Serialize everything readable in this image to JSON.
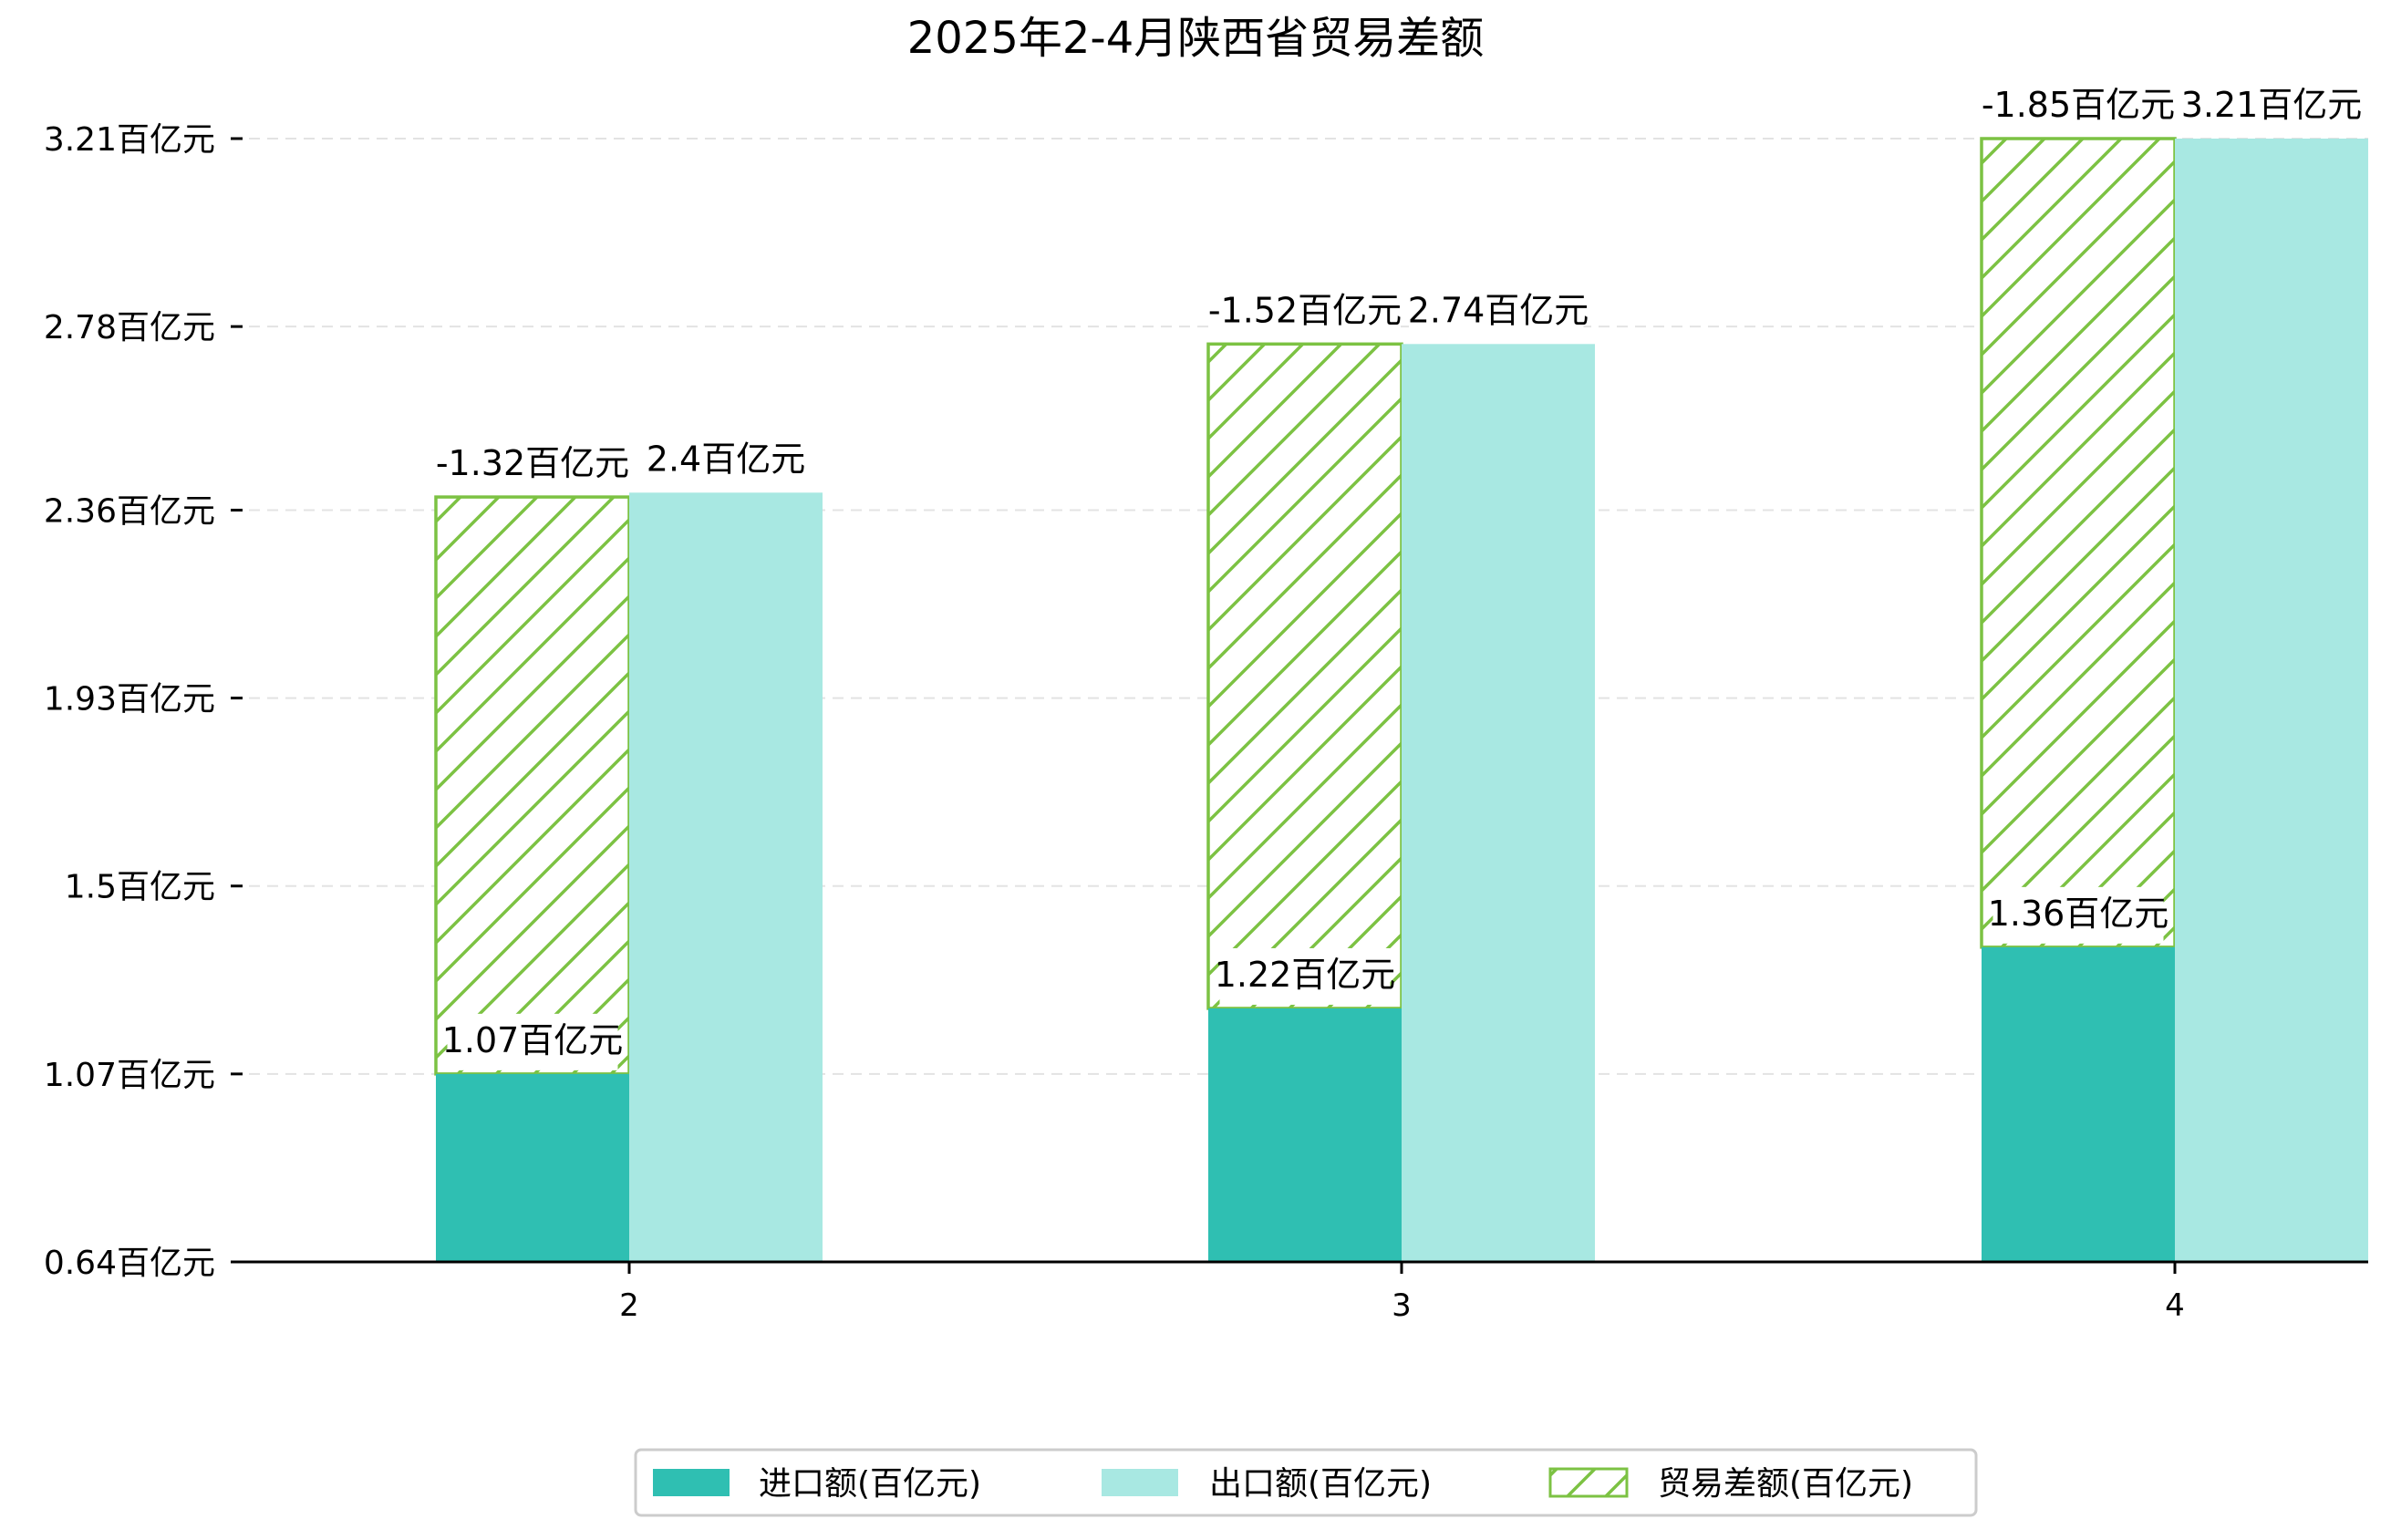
{
  "chart_data": {
    "type": "bar",
    "title": "2025年2-4月陕西省贸易差额",
    "categories": [
      "2",
      "3",
      "4"
    ],
    "y_ticks": [
      "0.64百亿元",
      "1.07百亿元",
      "1.5百亿元",
      "1.93百亿元",
      "2.36百亿元",
      "2.78百亿元",
      "3.21百亿元"
    ],
    "ylim": [
      0.64,
      3.3
    ],
    "grid": "horizontal dashed",
    "legend_position": "bottom-center",
    "series": [
      {
        "name": "进口额(百亿元)",
        "values": [
          1.07,
          1.22,
          1.36
        ],
        "labels": [
          "1.07百亿元",
          "1.22百亿元",
          "1.36百亿元"
        ],
        "color": "#2fbfb2"
      },
      {
        "name": "出口额(百亿元)",
        "values": [
          2.4,
          2.74,
          3.21
        ],
        "labels": [
          "2.4百亿元",
          "2.74百亿元",
          "3.21百亿元"
        ],
        "color": "#a8e8e2"
      },
      {
        "name": "贸易差额(百亿元)",
        "values": [
          -1.32,
          -1.52,
          -1.85
        ],
        "labels": [
          "-1.32百亿元",
          "-1.52百亿元",
          "-1.85百亿元"
        ],
        "color": "#7cc243"
      }
    ]
  }
}
